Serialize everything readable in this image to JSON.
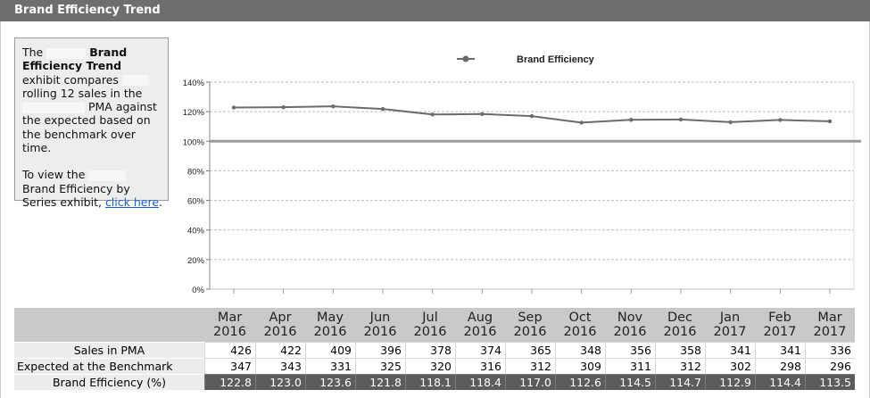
{
  "header": {
    "title": "Brand Efficiency Trend"
  },
  "info": {
    "p1_the": "The",
    "p1_bold": "Brand Efficiency Trend",
    "p1_rest1": " exhibit compares",
    "p1_rest2": " rolling 12 sales in the",
    "p1_rest3": "PMA against the expected based on the benchmark over time.",
    "p2_a": "To view the",
    "p2_b": " Brand Efficiency by Series exhibit, ",
    "link": "click here",
    "p2_end": "."
  },
  "chart_data": {
    "type": "line",
    "title": "",
    "xlabel": "",
    "ylabel": "",
    "legend": "top",
    "legend_label": "Brand Efficiency",
    "categories": [
      "Mar 2016",
      "Apr 2016",
      "May 2016",
      "Jun 2016",
      "Jul 2016",
      "Aug 2016",
      "Sep 2016",
      "Oct 2016",
      "Nov 2016",
      "Dec 2016",
      "Jan 2017",
      "Feb 2017",
      "Mar 2017"
    ],
    "series": [
      {
        "name": "Brand Efficiency",
        "values": [
          122.8,
          123.0,
          123.6,
          121.8,
          118.1,
          118.4,
          117.0,
          112.6,
          114.5,
          114.7,
          112.9,
          114.4,
          113.5
        ]
      }
    ],
    "reference_line": 100,
    "ylim": [
      0,
      140
    ],
    "yticks": [
      "0%",
      "20%",
      "40%",
      "60%",
      "80%",
      "100%",
      "120%",
      "140%"
    ],
    "grid": true,
    "colors": {
      "line": "#6b6b6b",
      "reference": "#9a9a9a",
      "grid": "#bdbdbd"
    }
  },
  "table": {
    "months": [
      [
        "Mar",
        "2016"
      ],
      [
        "Apr",
        "2016"
      ],
      [
        "May",
        "2016"
      ],
      [
        "Jun",
        "2016"
      ],
      [
        "Jul",
        "2016"
      ],
      [
        "Aug",
        "2016"
      ],
      [
        "Sep",
        "2016"
      ],
      [
        "Oct",
        "2016"
      ],
      [
        "Nov",
        "2016"
      ],
      [
        "Dec",
        "2016"
      ],
      [
        "Jan",
        "2017"
      ],
      [
        "Feb",
        "2017"
      ],
      [
        "Mar",
        "2017"
      ]
    ],
    "rows": [
      {
        "label": "Sales in PMA",
        "values": [
          "426",
          "422",
          "409",
          "396",
          "378",
          "374",
          "365",
          "348",
          "356",
          "358",
          "341",
          "341",
          "336"
        ]
      },
      {
        "label": "Expected at the Benchmark",
        "values": [
          "347",
          "343",
          "331",
          "325",
          "320",
          "316",
          "312",
          "309",
          "311",
          "312",
          "302",
          "298",
          "296"
        ]
      },
      {
        "label": "Brand Efficiency (%)",
        "values": [
          "122.8",
          "123.0",
          "123.6",
          "121.8",
          "118.1",
          "118.4",
          "117.0",
          "112.6",
          "114.5",
          "114.7",
          "112.9",
          "114.4",
          "113.5"
        ]
      }
    ]
  }
}
